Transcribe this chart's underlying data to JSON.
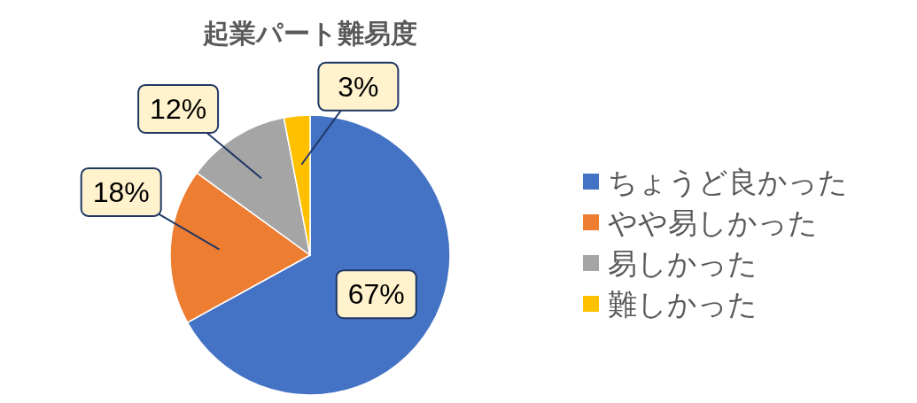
{
  "chart_data": {
    "type": "pie",
    "title": "起業パート難易度",
    "categories": [
      "ちょうど良かった",
      "やや易しかった",
      "易しかった",
      "難しかった"
    ],
    "values": [
      67,
      18,
      12,
      3
    ],
    "colors": [
      "#4472c4",
      "#ed7d31",
      "#a5a5a5",
      "#ffc000"
    ],
    "value_labels": [
      "67%",
      "18%",
      "12%",
      "3%"
    ],
    "legend": "right"
  }
}
